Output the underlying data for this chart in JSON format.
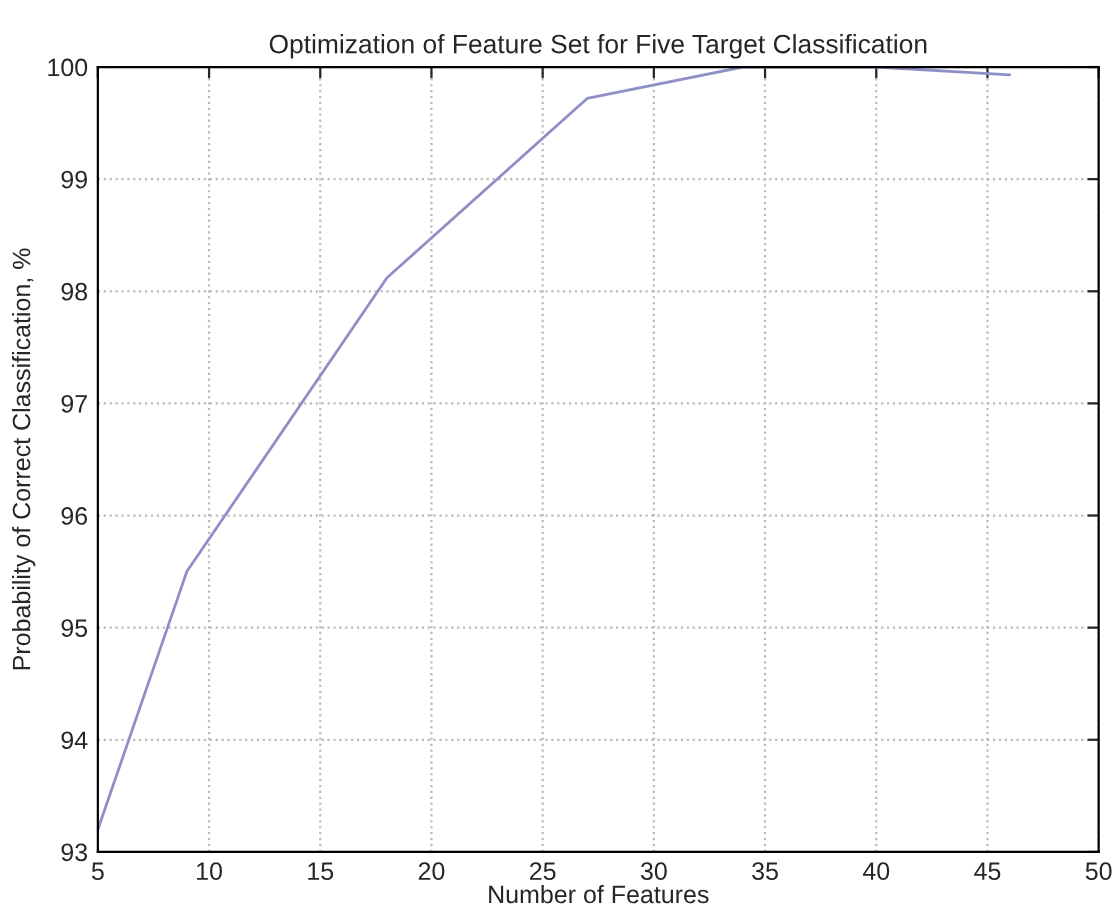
{
  "chart_data": {
    "type": "line",
    "title": "Optimization of Feature Set for Five Target Classification",
    "xlabel": "Number of Features",
    "ylabel": "Probability of Correct Classification, %",
    "x": [
      5,
      9,
      18,
      27,
      34,
      40,
      46
    ],
    "series": [
      {
        "color": "#8f8fc8",
        "values": [
          93.2,
          95.5,
          98.12,
          99.72,
          100.0,
          100.0,
          99.93
        ]
      }
    ],
    "xlim": [
      5,
      50
    ],
    "xticks": [
      5,
      10,
      15,
      20,
      25,
      30,
      35,
      40,
      45,
      50
    ],
    "ylim": [
      93,
      100
    ],
    "yticks": [
      93,
      94,
      95,
      96,
      97,
      98,
      99,
      100
    ],
    "grid": true,
    "marker": "none",
    "line_style": "solid"
  }
}
